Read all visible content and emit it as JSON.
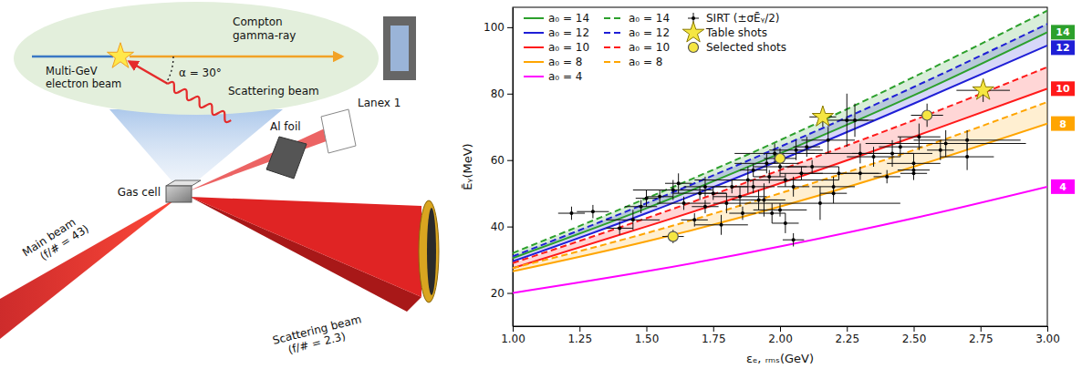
{
  "diagram": {
    "inset": {
      "gamma_ray": [
        "Compton",
        "gamma-ray"
      ],
      "electron_beam": [
        "Multi-GeV",
        "electron beam"
      ],
      "angle": "α = 30°",
      "scattering_beam": "Scattering beam"
    },
    "al_foil": "Al foil",
    "lanex": "Lanex 1",
    "gas_cell": "Gas cell",
    "main_beam": [
      "Main beam",
      "(f/# = 43)"
    ],
    "scattering_beam": [
      "Scattering beam",
      "(f/# = 2.3)"
    ]
  },
  "chart_data": {
    "type": "line",
    "x_label": "εₑ, ᵣₘₛ(GeV)",
    "y_label": "Ēᵧ(MeV)",
    "xlim": [
      1,
      3
    ],
    "ylim": [
      10,
      106
    ],
    "xticks": [
      {
        "value": 1,
        "label": "1.00"
      },
      {
        "value": 1.25,
        "label": "1.25"
      },
      {
        "value": 1.5,
        "label": "1.50"
      },
      {
        "value": 1.75,
        "label": "1.75"
      },
      {
        "value": 2,
        "label": "2.00"
      },
      {
        "value": 2.25,
        "label": "2.25"
      },
      {
        "value": 2.5,
        "label": "2.50"
      },
      {
        "value": 2.75,
        "label": "2.75"
      },
      {
        "value": 3,
        "label": "3.00"
      }
    ],
    "yticks": [
      20,
      40,
      60,
      80,
      100
    ],
    "grid": false,
    "legend": "upper left",
    "end_labels": [
      "14",
      "12",
      "10",
      "8",
      "4"
    ],
    "series": [
      {
        "name": "a₀ = 14",
        "type": "line",
        "line_style": "solid",
        "color": "#2ca02c",
        "x": [
          1,
          1.5,
          2,
          2.5,
          3
        ],
        "values": [
          30.5,
          45.5,
          62,
          79.5,
          98.5
        ]
      },
      {
        "name": "a₀ = 12",
        "type": "line",
        "line_style": "solid",
        "color": "#1f1fd6",
        "x": [
          1,
          1.5,
          2,
          2.5,
          3
        ],
        "values": [
          29.5,
          44,
          60,
          77,
          94.5
        ]
      },
      {
        "name": "a₀ = 10",
        "type": "line",
        "line_style": "solid",
        "color": "#ff1a1a",
        "x": [
          1,
          1.5,
          2,
          2.5,
          3
        ],
        "values": [
          27.5,
          40,
          53,
          67,
          81.5
        ]
      },
      {
        "name": "a₀ = 8",
        "type": "line",
        "line_style": "solid",
        "color": "#ffa500",
        "x": [
          1,
          1.5,
          2,
          2.5,
          3
        ],
        "values": [
          26.5,
          35.5,
          46,
          58,
          71
        ]
      },
      {
        "name": "a₀ = 4",
        "type": "line",
        "line_style": "solid",
        "color": "#ff00ff",
        "x": [
          1,
          1.5,
          2,
          2.5,
          3
        ],
        "values": [
          20,
          26.5,
          34,
          42.5,
          52
        ]
      },
      {
        "name": "a₀ = 14",
        "type": "line",
        "line_style": "dashed",
        "color": "#2ca02c",
        "x": [
          1,
          1.5,
          2,
          2.5,
          3
        ],
        "values": [
          32,
          48.5,
          66,
          85,
          105
        ]
      },
      {
        "name": "a₀ = 12",
        "type": "line",
        "line_style": "dashed",
        "color": "#1f1fd6",
        "x": [
          1,
          1.5,
          2,
          2.5,
          3
        ],
        "values": [
          31,
          47,
          64,
          82,
          101
        ]
      },
      {
        "name": "a₀ = 10",
        "type": "line",
        "line_style": "dashed",
        "color": "#ff1a1a",
        "x": [
          1,
          1.5,
          2,
          2.5,
          3
        ],
        "values": [
          29,
          42.5,
          57,
          72,
          88
        ]
      },
      {
        "name": "a₀ = 8",
        "type": "line",
        "line_style": "dashed",
        "color": "#ffa500",
        "x": [
          1,
          1.5,
          2,
          2.5,
          3
        ],
        "values": [
          27.5,
          38,
          50,
          63,
          77.5
        ]
      },
      {
        "name": "SIRT (±σĒᵧ/2)",
        "type": "scatter",
        "marker": "point",
        "color": "#000000",
        "x": [
          1.22,
          1.3,
          1.4,
          1.45,
          1.48,
          1.5,
          1.55,
          1.6,
          1.62,
          1.64,
          1.68,
          1.7,
          1.72,
          1.75,
          1.78,
          1.8,
          1.82,
          1.85,
          1.86,
          1.88,
          1.9,
          1.9,
          1.92,
          1.94,
          1.95,
          1.96,
          1.97,
          1.98,
          2,
          2.02,
          2.02,
          2.05,
          2.06,
          2.08,
          2.1,
          2.12,
          2.15,
          2.18,
          2.2,
          2.2,
          2.22,
          2.25,
          2.28,
          2.3,
          2.3,
          2.35,
          2.4,
          2.42,
          2.45,
          2.5,
          2.5,
          2.5,
          2.52,
          2.6,
          2.62,
          2.7,
          2.7,
          2.05,
          1.72,
          2
        ],
        "values": [
          44,
          44.5,
          39.5,
          42,
          46,
          48.5,
          49,
          51,
          53,
          47,
          42,
          50,
          52,
          50,
          40.5,
          47,
          52,
          49,
          44,
          54,
          57,
          52,
          48,
          48,
          59,
          55,
          44,
          62,
          45,
          41,
          54,
          52,
          63,
          56,
          64,
          58,
          47,
          66,
          52,
          50,
          56,
          72,
          72,
          56,
          62,
          61,
          55,
          62,
          64,
          59,
          57,
          56,
          67,
          63,
          65,
          61,
          66,
          36,
          46,
          58
        ],
        "x_error": [
          0.05,
          0.06,
          0.05,
          0.1,
          0.06,
          0.04,
          0.05,
          0.15,
          0.05,
          0.1,
          0.05,
          0.1,
          0.08,
          0.05,
          0.1,
          0.05,
          0.06,
          0.1,
          0.05,
          0.2,
          0.05,
          0.08,
          0.1,
          0.05,
          0.12,
          0.06,
          0.05,
          0.15,
          0.1,
          0.05,
          0.2,
          0.06,
          0.1,
          0.08,
          0.05,
          0.1,
          0.3,
          0.1,
          0.08,
          0.05,
          0.15,
          0.1,
          0.05,
          0.08,
          0.2,
          0.1,
          0.05,
          0.15,
          0.08,
          0.1,
          0.06,
          0.05,
          0.08,
          0.05,
          0.3,
          0.1,
          0.2,
          0.04,
          0.05,
          0.1
        ],
        "y_error": [
          2,
          2,
          2,
          3,
          2,
          2.5,
          2,
          3,
          3,
          2,
          2,
          2,
          3,
          2,
          3,
          3,
          2,
          3,
          2,
          4,
          2,
          2,
          3,
          5,
          3,
          2,
          3,
          3,
          2,
          3,
          2,
          3,
          3,
          2,
          3,
          2,
          5,
          4,
          3,
          3,
          2,
          8,
          5,
          2,
          3,
          3,
          2,
          4,
          3,
          3,
          2,
          2,
          4,
          3,
          4,
          4,
          3,
          2,
          2,
          3
        ]
      },
      {
        "name": "Table shots",
        "type": "scatter",
        "marker": "star",
        "color": "#f5e642",
        "x": [
          2.16,
          2.76
        ],
        "values": [
          73,
          81
        ],
        "x_error": [
          0.05,
          0.1
        ],
        "y_error": [
          3,
          3.5
        ]
      },
      {
        "name": "Selected shots",
        "type": "scatter",
        "marker": "circle",
        "color": "#f5e642",
        "x": [
          1.6,
          2,
          2.55
        ],
        "values": [
          37,
          60.5,
          73.5
        ],
        "x_error": [
          0.04,
          0.06,
          0.06
        ],
        "y_error": [
          2,
          3,
          3.5
        ]
      }
    ]
  }
}
